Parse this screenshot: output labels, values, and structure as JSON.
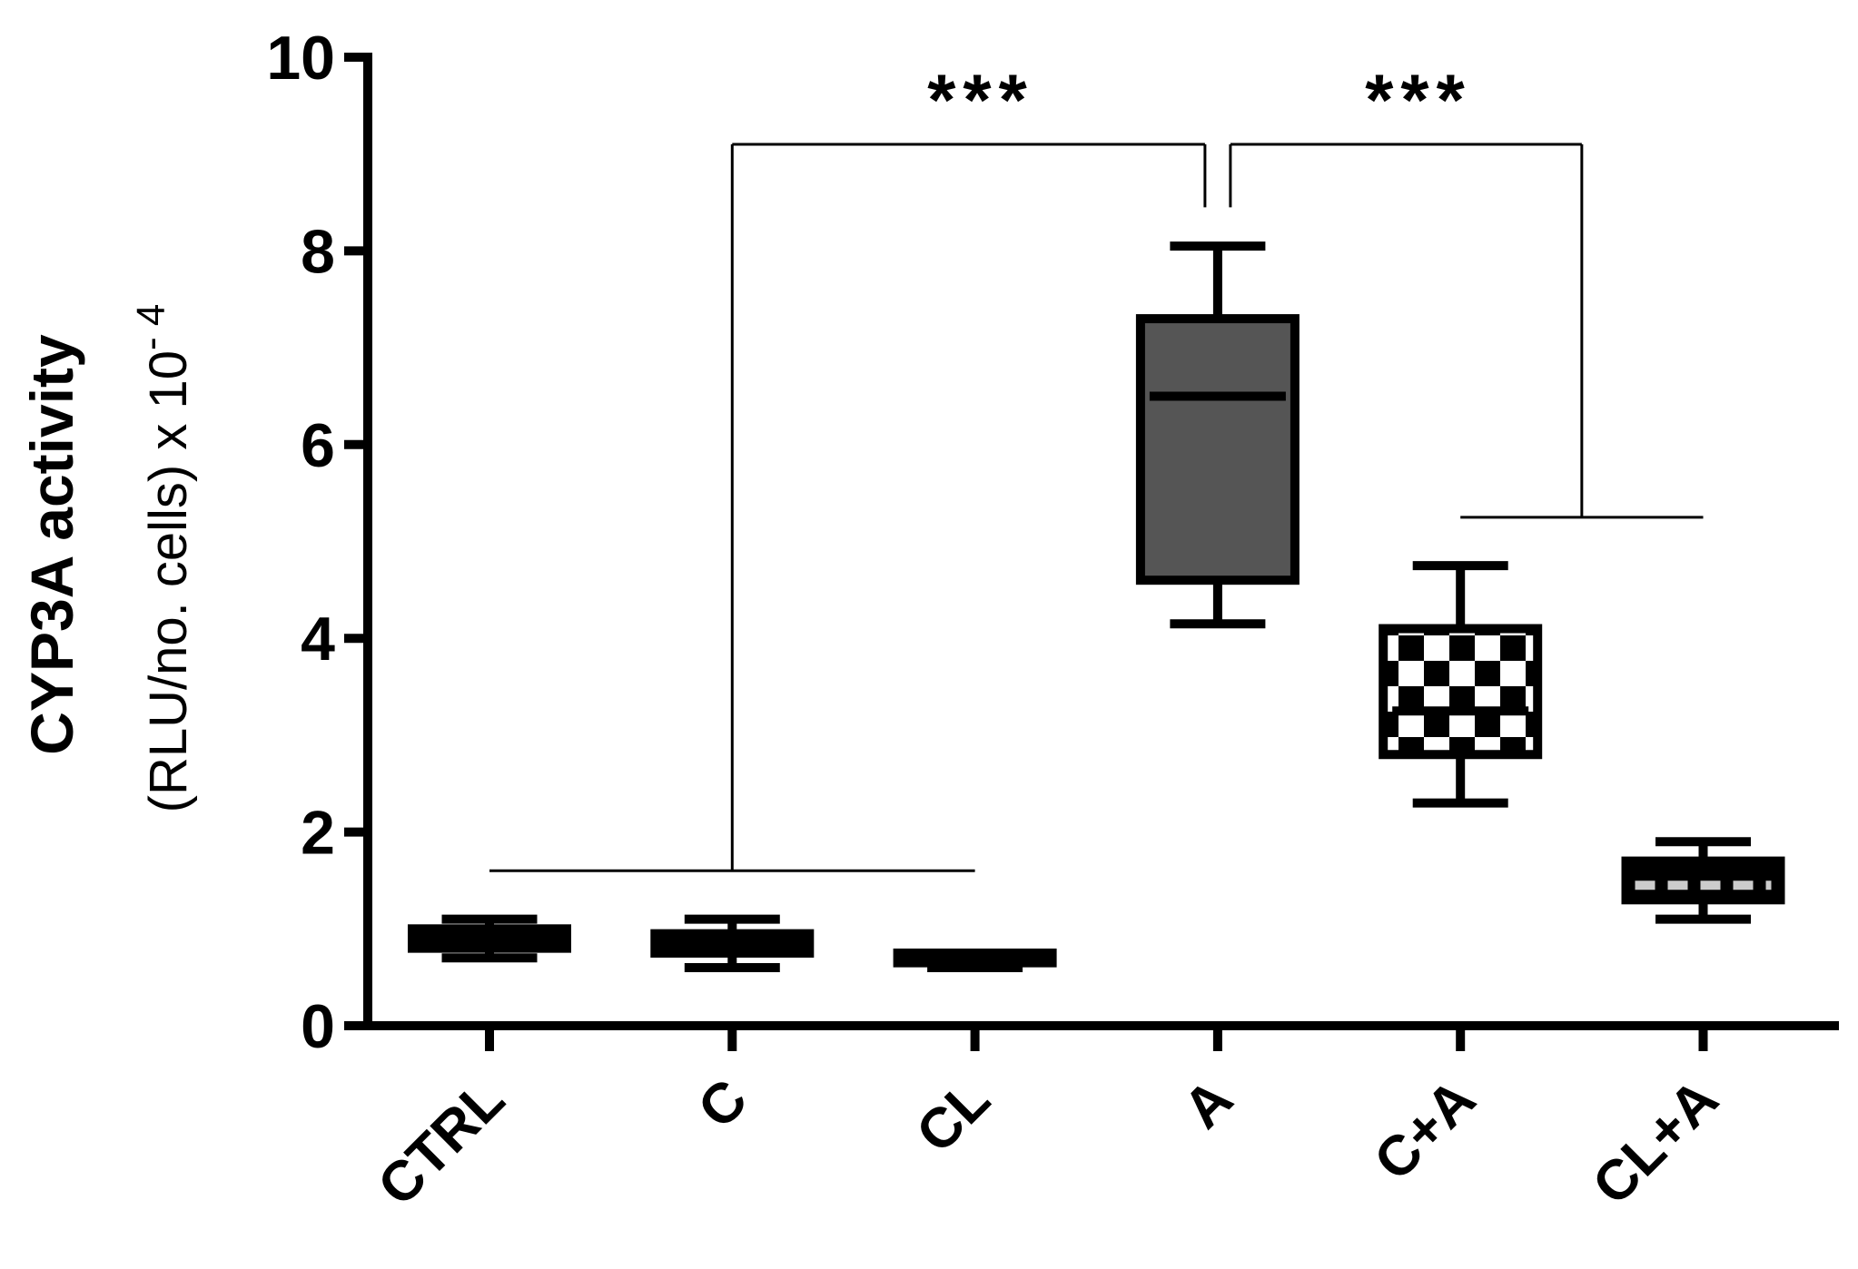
{
  "chart_data": {
    "type": "box",
    "ylabel": "CYP3A activity",
    "ylabel_sub": "(RLU/no. cells) x 10",
    "ylabel_exponent": "- 4",
    "categories": [
      "CTRL",
      "C",
      "CL",
      "A",
      "C+A",
      "CL+A"
    ],
    "min": [
      0.7,
      0.6,
      0.6,
      4.15,
      2.3,
      1.1
    ],
    "q1": [
      0.8,
      0.75,
      0.65,
      4.6,
      2.8,
      1.3
    ],
    "median": [
      0.9,
      0.85,
      0.7,
      6.5,
      3.25,
      1.45
    ],
    "q3": [
      1.0,
      0.95,
      0.75,
      7.3,
      4.1,
      1.7
    ],
    "max": [
      1.1,
      1.1,
      0.75,
      8.05,
      4.75,
      1.9
    ],
    "box_fill": [
      "black",
      "black",
      "black",
      "#555555",
      "checkerboard",
      "black"
    ],
    "median_color": [
      "black",
      "black",
      "black",
      "black",
      "black",
      "#cccccc"
    ],
    "ylim": [
      0,
      10
    ],
    "yticks": [
      0,
      2,
      4,
      6,
      8,
      10
    ],
    "annotations": [
      "***",
      "***"
    ]
  }
}
